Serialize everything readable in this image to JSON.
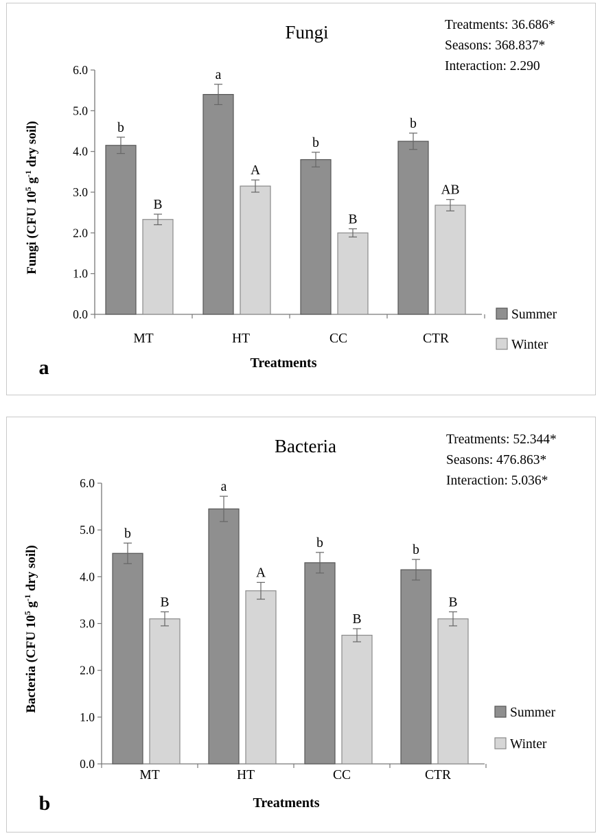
{
  "colors": {
    "summer_fill": "#8f8f8f",
    "summer_stroke": "#555555",
    "winter_fill": "#d6d6d6",
    "winter_stroke": "#8a8a8a",
    "axis": "#777777",
    "error_bar": "#666666"
  },
  "chart_data": [
    {
      "panel_label": "a",
      "type": "bar",
      "title": "Fungi",
      "xlabel": "Treatments",
      "ylabel_main": "Fungi (CFU 10",
      "ylabel_sup1": "5",
      "ylabel_mid": " g",
      "ylabel_sup2": "-1",
      "ylabel_end": " dry soil)",
      "ylim": [
        0,
        6
      ],
      "yticks": [
        "0.0",
        "1.0",
        "2.0",
        "3.0",
        "4.0",
        "5.0",
        "6.0"
      ],
      "categories": [
        "MT",
        "HT",
        "CC",
        "CTR"
      ],
      "series": [
        {
          "name": "Summer",
          "values": [
            4.15,
            5.4,
            3.8,
            4.25
          ],
          "errors": [
            0.2,
            0.25,
            0.18,
            0.2
          ],
          "letters": [
            "b",
            "a",
            "b",
            "b"
          ]
        },
        {
          "name": "Winter",
          "values": [
            2.33,
            3.15,
            2.0,
            2.68
          ],
          "errors": [
            0.13,
            0.15,
            0.1,
            0.14
          ],
          "letters": [
            "B",
            "A",
            "B",
            "AB"
          ]
        }
      ],
      "stats": [
        "Treatments: 36.686*",
        "Seasons: 368.837*",
        "Interaction: 2.290"
      ],
      "legend_position": "right"
    },
    {
      "panel_label": "b",
      "type": "bar",
      "title": "Bacteria",
      "xlabel": "Treatments",
      "ylabel_main": "Bacteria (CFU 10",
      "ylabel_sup1": "5",
      "ylabel_mid": " g",
      "ylabel_sup2": "-1",
      "ylabel_end": " dry soil)",
      "ylim": [
        0,
        6
      ],
      "yticks": [
        "0.0",
        "1.0",
        "2.0",
        "3.0",
        "4.0",
        "5.0",
        "6.0"
      ],
      "categories": [
        "MT",
        "HT",
        "CC",
        "CTR"
      ],
      "series": [
        {
          "name": "Summer",
          "values": [
            4.5,
            5.45,
            4.3,
            4.15
          ],
          "errors": [
            0.22,
            0.27,
            0.22,
            0.22
          ],
          "letters": [
            "b",
            "a",
            "b",
            "b"
          ]
        },
        {
          "name": "Winter",
          "values": [
            3.1,
            3.7,
            2.75,
            3.1
          ],
          "errors": [
            0.15,
            0.18,
            0.14,
            0.15
          ],
          "letters": [
            "B",
            "A",
            "B",
            "B"
          ]
        }
      ],
      "stats": [
        "Treatments: 52.344*",
        "Seasons: 476.863*",
        "Interaction: 5.036*"
      ],
      "legend_position": "right"
    }
  ]
}
